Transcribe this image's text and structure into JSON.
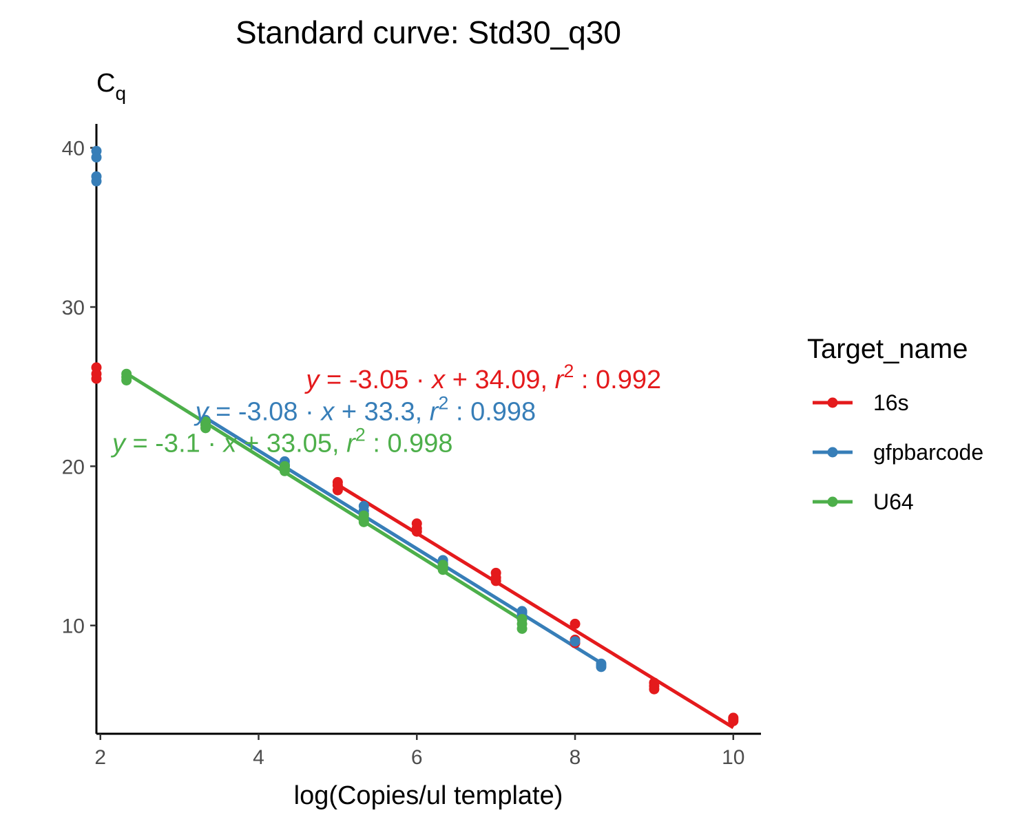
{
  "chart_data": {
    "type": "scatter",
    "title": "Standard curve: Std30_q30",
    "xlabel": "log(Copies/ul template)",
    "ylabel": "C",
    "ylabel_subscript": "q",
    "xlim": [
      1.95,
      10.35
    ],
    "ylim": [
      3.2,
      41.5
    ],
    "xticks": [
      2,
      4,
      6,
      8,
      10
    ],
    "yticks": [
      10,
      20,
      30,
      40
    ],
    "grid": false,
    "legend_title": "Target_name",
    "legend_position": "right",
    "series": [
      {
        "name": "16s",
        "color": "#E41A1C",
        "points": [
          [
            1.95,
            26.2
          ],
          [
            1.95,
            25.8
          ],
          [
            1.95,
            25.5
          ],
          [
            5.0,
            19.0
          ],
          [
            5.0,
            18.8
          ],
          [
            5.0,
            18.5
          ],
          [
            6.0,
            16.4
          ],
          [
            6.0,
            16.1
          ],
          [
            6.0,
            15.9
          ],
          [
            7.0,
            13.3
          ],
          [
            7.0,
            13.0
          ],
          [
            7.0,
            12.8
          ],
          [
            8.0,
            10.1
          ],
          [
            8.0,
            9.1
          ],
          [
            8.0,
            8.9
          ],
          [
            9.0,
            6.4
          ],
          [
            9.0,
            6.2
          ],
          [
            9.0,
            6.0
          ],
          [
            10.0,
            4.2
          ],
          [
            10.0,
            4.0
          ],
          [
            10.0,
            4.1
          ]
        ],
        "fit_range": [
          5.0,
          10.0
        ],
        "slope": -3.05,
        "intercept": 34.09,
        "r2": "0.992",
        "equation": {
          "y_part": "y",
          "eq_sign": " = ",
          "slope_part": "-3.05",
          "dot": " · ",
          "x_part": "x",
          "plus": " + ",
          "intercept_part": "34.09,  ",
          "r_part": "r",
          "sup": "2",
          "tail": " : 0.992"
        },
        "label_anchor": [
          4.6,
          24.9
        ]
      },
      {
        "name": "gfpbarcode",
        "color": "#377EB8",
        "points": [
          [
            1.95,
            39.8
          ],
          [
            1.95,
            39.4
          ],
          [
            1.95,
            38.2
          ],
          [
            1.95,
            37.9
          ],
          [
            3.33,
            22.9
          ],
          [
            3.33,
            22.6
          ],
          [
            3.33,
            22.7
          ],
          [
            4.33,
            20.3
          ],
          [
            4.33,
            20.1
          ],
          [
            4.33,
            20.0
          ],
          [
            5.33,
            17.5
          ],
          [
            5.33,
            17.2
          ],
          [
            5.33,
            17.0
          ],
          [
            6.33,
            14.1
          ],
          [
            6.33,
            13.9
          ],
          [
            6.33,
            13.8
          ],
          [
            7.33,
            10.9
          ],
          [
            7.33,
            10.8
          ],
          [
            7.33,
            10.6
          ],
          [
            8.0,
            9.0
          ],
          [
            8.33,
            7.6
          ],
          [
            8.33,
            7.4
          ],
          [
            8.33,
            7.5
          ]
        ],
        "fit_range": [
          3.33,
          8.33
        ],
        "slope": -3.08,
        "intercept": 33.3,
        "r2": "0.998",
        "equation": {
          "y_part": "y",
          "eq_sign": " = ",
          "slope_part": "-3.08",
          "dot": " · ",
          "x_part": "x",
          "plus": " + ",
          "intercept_part": "33.3,  ",
          "r_part": "r",
          "sup": "2",
          "tail": " : 0.998"
        },
        "label_anchor": [
          3.2,
          22.9
        ]
      },
      {
        "name": "U64",
        "color": "#4DAF4A",
        "points": [
          [
            2.33,
            25.8
          ],
          [
            2.33,
            25.6
          ],
          [
            2.33,
            25.4
          ],
          [
            3.33,
            22.8
          ],
          [
            3.33,
            22.6
          ],
          [
            3.33,
            22.4
          ],
          [
            4.33,
            20.0
          ],
          [
            4.33,
            19.8
          ],
          [
            4.33,
            19.7
          ],
          [
            5.33,
            16.9
          ],
          [
            5.33,
            16.6
          ],
          [
            5.33,
            16.5
          ],
          [
            6.33,
            13.8
          ],
          [
            6.33,
            13.6
          ],
          [
            6.33,
            13.5
          ],
          [
            7.33,
            10.4
          ],
          [
            7.33,
            10.1
          ],
          [
            7.33,
            9.8
          ]
        ],
        "fit_range": [
          2.33,
          7.33
        ],
        "slope": -3.1,
        "intercept": 33.05,
        "r2": "0.998",
        "equation": {
          "y_part": "y",
          "eq_sign": " = ",
          "slope_part": "-3.1",
          "dot": " · ",
          "x_part": "x",
          "plus": " + ",
          "intercept_part": "33.05,  ",
          "r_part": "r",
          "sup": "2",
          "tail": " : 0.998"
        },
        "label_anchor": [
          2.15,
          20.9
        ]
      }
    ]
  }
}
